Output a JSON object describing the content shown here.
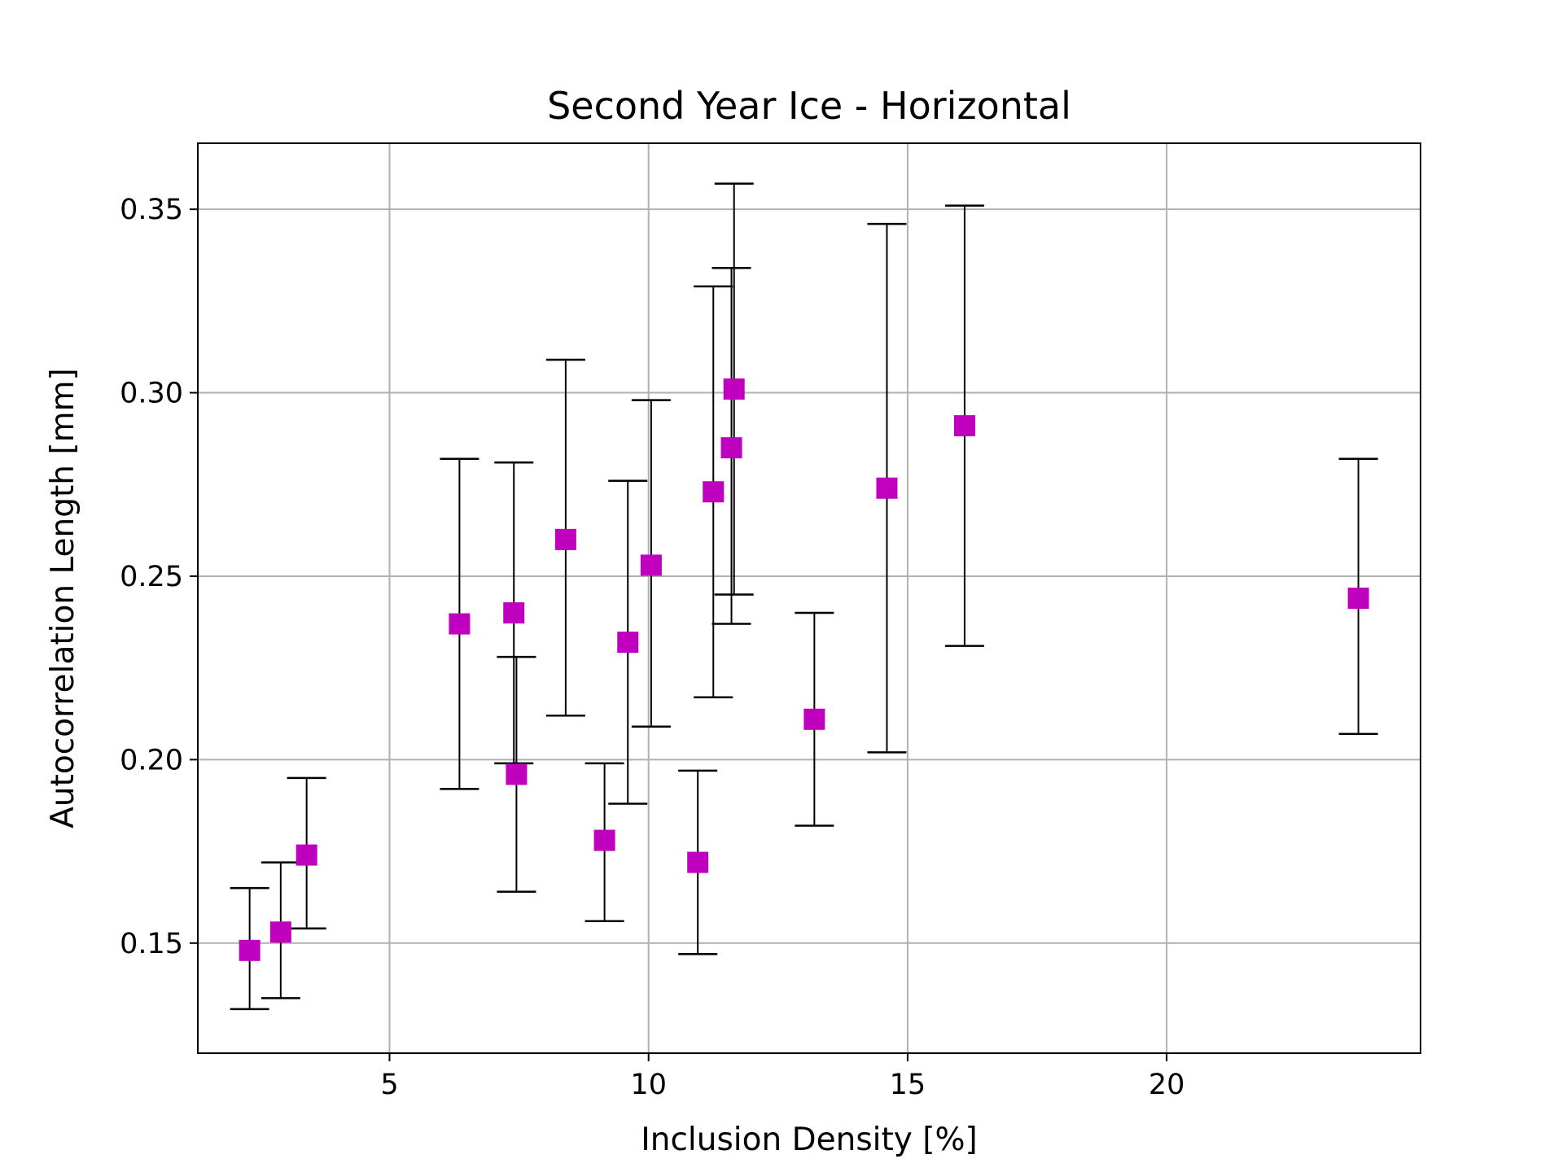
{
  "chart_data": {
    "type": "scatter",
    "title": "Second Year Ice - Horizontal",
    "xlabel": "Inclusion Density [%]",
    "ylabel": "Autocorrelation Length [mm]",
    "xlim": [
      1.3,
      24.9
    ],
    "ylim": [
      0.12,
      0.368
    ],
    "xticks": [
      5,
      10,
      15,
      20
    ],
    "yticks": [
      0.15,
      0.2,
      0.25,
      0.3,
      0.35
    ],
    "xtick_labels": [
      "5",
      "10",
      "15",
      "20"
    ],
    "ytick_labels": [
      "0.15",
      "0.20",
      "0.25",
      "0.30",
      "0.35"
    ],
    "grid": true,
    "marker": "square",
    "marker_color": "#bf00bf",
    "errorbar_color": "#000000",
    "points": [
      {
        "x": 2.3,
        "y": 0.148,
        "ylow": 0.132,
        "yhigh": 0.165
      },
      {
        "x": 2.9,
        "y": 0.153,
        "ylow": 0.135,
        "yhigh": 0.172
      },
      {
        "x": 3.4,
        "y": 0.174,
        "ylow": 0.154,
        "yhigh": 0.195
      },
      {
        "x": 6.35,
        "y": 0.237,
        "ylow": 0.192,
        "yhigh": 0.282
      },
      {
        "x": 7.4,
        "y": 0.24,
        "ylow": 0.199,
        "yhigh": 0.281
      },
      {
        "x": 7.45,
        "y": 0.196,
        "ylow": 0.164,
        "yhigh": 0.228
      },
      {
        "x": 8.4,
        "y": 0.26,
        "ylow": 0.212,
        "yhigh": 0.309
      },
      {
        "x": 9.15,
        "y": 0.178,
        "ylow": 0.156,
        "yhigh": 0.199
      },
      {
        "x": 9.6,
        "y": 0.232,
        "ylow": 0.188,
        "yhigh": 0.276
      },
      {
        "x": 10.05,
        "y": 0.253,
        "ylow": 0.209,
        "yhigh": 0.298
      },
      {
        "x": 10.95,
        "y": 0.172,
        "ylow": 0.147,
        "yhigh": 0.197
      },
      {
        "x": 11.25,
        "y": 0.273,
        "ylow": 0.217,
        "yhigh": 0.329
      },
      {
        "x": 11.6,
        "y": 0.285,
        "ylow": 0.237,
        "yhigh": 0.334
      },
      {
        "x": 11.65,
        "y": 0.301,
        "ylow": 0.245,
        "yhigh": 0.357
      },
      {
        "x": 13.2,
        "y": 0.211,
        "ylow": 0.182,
        "yhigh": 0.24
      },
      {
        "x": 14.6,
        "y": 0.274,
        "ylow": 0.202,
        "yhigh": 0.346
      },
      {
        "x": 16.1,
        "y": 0.291,
        "ylow": 0.231,
        "yhigh": 0.351
      },
      {
        "x": 23.7,
        "y": 0.244,
        "ylow": 0.207,
        "yhigh": 0.282
      }
    ]
  }
}
